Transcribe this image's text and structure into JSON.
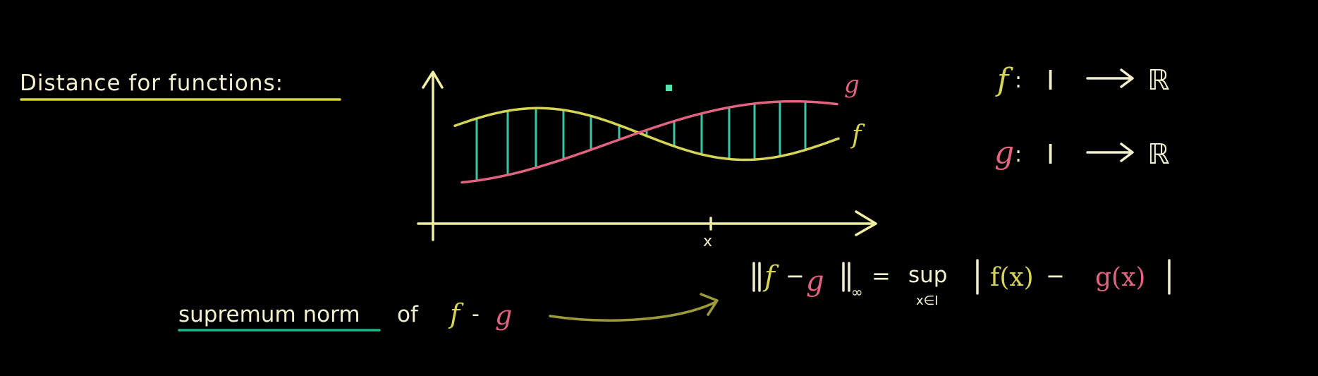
{
  "title": "Distance for functions:",
  "graph": {
    "g_label": "g",
    "f_label": "f",
    "x_label": "x"
  },
  "mappings": [
    {
      "func": "f",
      "domain": "I",
      "codomain": "ℝ"
    },
    {
      "func": "g",
      "domain": "I",
      "codomain": "ℝ"
    }
  ],
  "annotation": {
    "term": "supremum norm",
    "of": "of",
    "expr_f": "f",
    "expr_minus": "-",
    "expr_g": "g"
  },
  "formula": {
    "norm_f": "f",
    "norm_minus": "−",
    "norm_g": "g",
    "subscript": "∞",
    "equals": "=",
    "sup": "sup",
    "sup_under": "x∈I",
    "abs_f": "f(x)",
    "abs_minus": "−",
    "abs_g": "g(x)"
  },
  "colors": {
    "background": "#000000",
    "axis": "#f2efa4",
    "f": "#d6d454",
    "g": "#e2637f",
    "fill_lines": "#37c7a6",
    "underline_title": "#d8d43e",
    "underline_term": "#1fb68c",
    "arrow": "#9d9a3a",
    "dot": "#52e3a8",
    "text": "#f3f0cf"
  }
}
